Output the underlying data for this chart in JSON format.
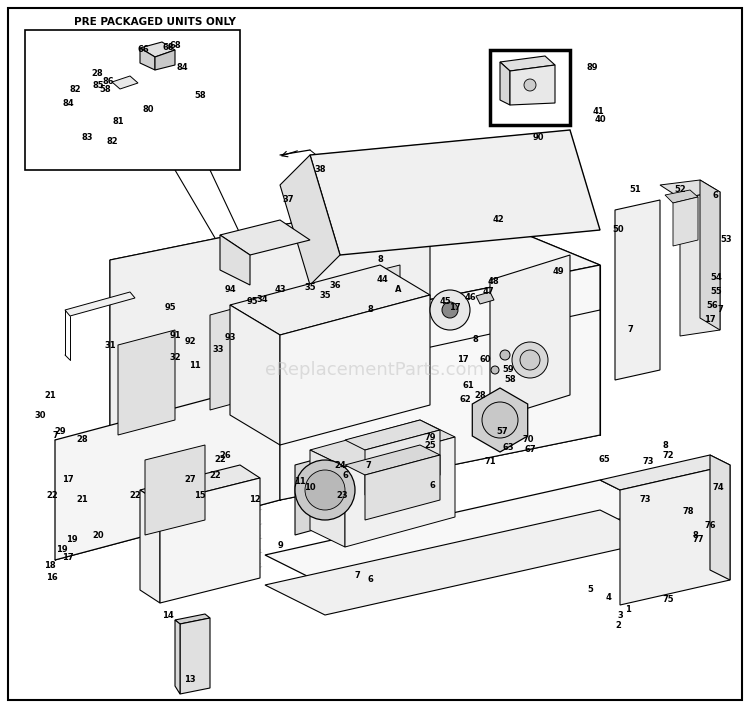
{
  "bg_color": "#ffffff",
  "line_color": "#000000",
  "watermark_text": "eReplacementParts.com",
  "watermark_color": "#c8c8c8",
  "fig_width": 7.5,
  "fig_height": 7.08,
  "dpi": 100
}
